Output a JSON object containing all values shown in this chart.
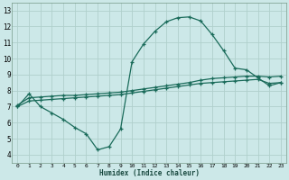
{
  "xlabel": "Humidex (Indice chaleur)",
  "bg_color": "#cce8e8",
  "grid_color": "#b0d0cc",
  "line_color": "#1a6b5a",
  "xlim": [
    -0.5,
    23.5
  ],
  "ylim": [
    3.5,
    13.5
  ],
  "xticks": [
    0,
    1,
    2,
    3,
    4,
    5,
    6,
    7,
    8,
    9,
    10,
    11,
    12,
    13,
    14,
    15,
    16,
    17,
    18,
    19,
    20,
    21,
    22,
    23
  ],
  "yticks": [
    4,
    5,
    6,
    7,
    8,
    9,
    10,
    11,
    12,
    13
  ],
  "curve1_x": [
    0,
    1,
    2,
    3,
    4,
    5,
    6,
    7,
    8,
    9,
    10,
    11,
    12,
    13,
    14,
    15,
    16,
    17,
    18,
    19,
    20,
    21,
    22,
    23
  ],
  "curve1_y": [
    7.0,
    7.8,
    7.0,
    6.6,
    6.2,
    5.7,
    5.3,
    4.3,
    4.5,
    5.6,
    9.8,
    10.9,
    11.7,
    12.3,
    12.55,
    12.6,
    12.35,
    11.5,
    10.5,
    9.4,
    9.3,
    8.8,
    8.3,
    8.5
  ],
  "curve2_x": [
    0,
    1,
    2,
    3,
    4,
    5,
    6,
    7,
    8,
    9,
    10,
    11,
    12,
    13,
    14,
    15,
    16,
    17,
    18,
    19,
    20,
    21,
    22,
    23
  ],
  "curve2_y": [
    7.1,
    7.55,
    7.6,
    7.65,
    7.7,
    7.7,
    7.75,
    7.8,
    7.85,
    7.9,
    8.0,
    8.1,
    8.2,
    8.3,
    8.4,
    8.5,
    8.65,
    8.75,
    8.8,
    8.85,
    8.9,
    8.9,
    8.85,
    8.9
  ],
  "curve3_x": [
    0,
    1,
    2,
    3,
    4,
    5,
    6,
    7,
    8,
    9,
    10,
    11,
    12,
    13,
    14,
    15,
    16,
    17,
    18,
    19,
    20,
    21,
    22,
    23
  ],
  "curve3_y": [
    7.0,
    7.35,
    7.4,
    7.45,
    7.5,
    7.55,
    7.6,
    7.65,
    7.7,
    7.75,
    7.85,
    7.95,
    8.05,
    8.15,
    8.25,
    8.35,
    8.45,
    8.5,
    8.55,
    8.6,
    8.65,
    8.7,
    8.45,
    8.5
  ]
}
